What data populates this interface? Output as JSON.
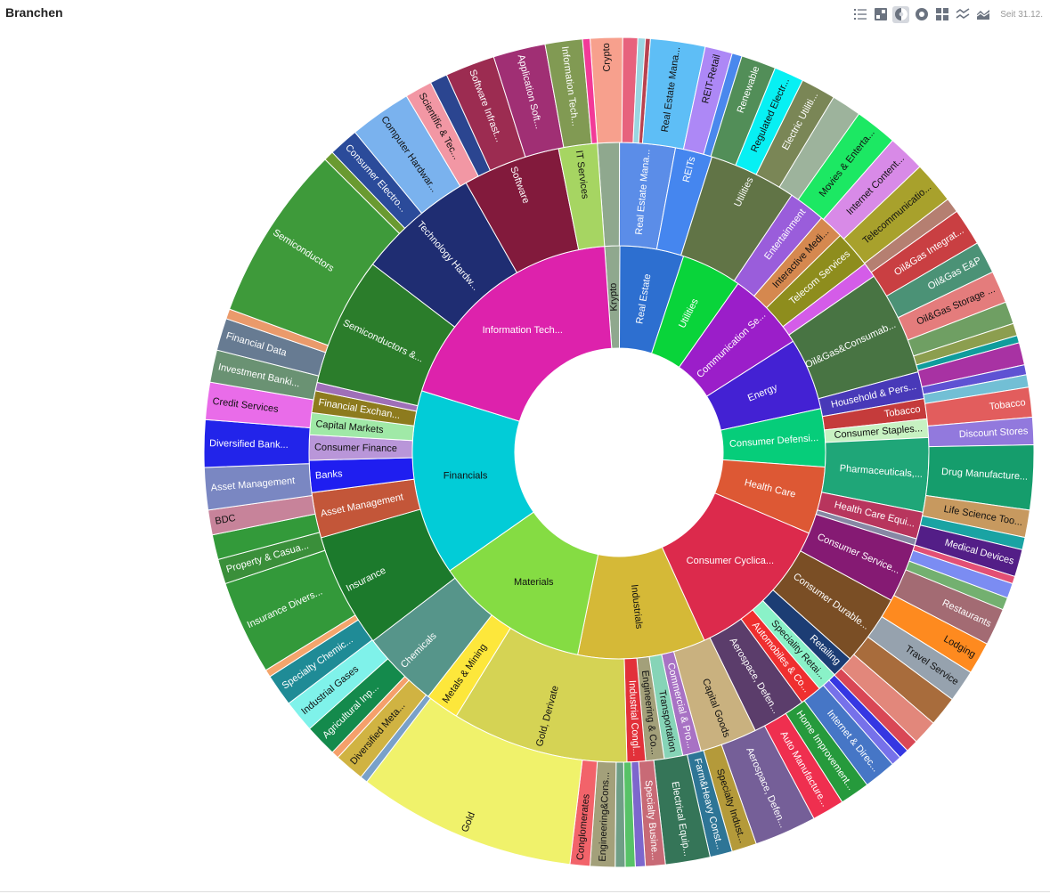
{
  "header": {
    "title": "Branchen",
    "since": "Seit 31.12.",
    "toolbar": [
      {
        "icon": "list-icon",
        "active": false
      },
      {
        "icon": "treemap-icon",
        "active": false
      },
      {
        "icon": "sunburst-icon",
        "active": true
      },
      {
        "icon": "globe-icon",
        "active": false
      },
      {
        "icon": "grid-icon",
        "active": false
      },
      {
        "icon": "line-chart-icon",
        "active": false
      },
      {
        "icon": "area-chart-icon",
        "active": false
      }
    ]
  },
  "chart_data": {
    "type": "sunburst",
    "title": "",
    "start_angle": -4,
    "inner": [
      {
        "label": "Krypto",
        "value": 1.3,
        "color": "#8fa88e"
      },
      {
        "label": "Real Estate",
        "value": 5.5,
        "color": "#2d6fd0"
      },
      {
        "label": "Utilities",
        "value": 5.2,
        "color": "#09d43a"
      },
      {
        "label": "Communication Se...",
        "value": 6.8,
        "color": "#9b1ec9"
      },
      {
        "label": "Energy",
        "value": 6.2,
        "color": "#4321d3"
      },
      {
        "label": "Consumer Defensi...",
        "value": 5.0,
        "color": "#06cd7a"
      },
      {
        "label": "Health Care",
        "value": 5.8,
        "color": "#dd5834"
      },
      {
        "label": "Consumer Cyclica...",
        "value": 13.0,
        "color": "#dc2a4c"
      },
      {
        "label": "Industrials",
        "value": 11.0,
        "color": "#d5b937"
      },
      {
        "label": "Materials",
        "value": 13.3,
        "color": "#85dc43"
      },
      {
        "label": "Financials",
        "value": 16.0,
        "color": "#02ccd7"
      },
      {
        "label": "Information Tech...",
        "value": 21.0,
        "color": "#dd22ac"
      }
    ],
    "middle": [
      {
        "label": "",
        "value": 1.3,
        "color": "#8fa88e"
      },
      {
        "label": "Real Estate Mana...",
        "value": 3.3,
        "color": "#5b8de8"
      },
      {
        "label": "REITs",
        "value": 2.2,
        "color": "#4586ef"
      },
      {
        "label": "Utilities",
        "value": 5.2,
        "color": "#617446"
      },
      {
        "label": "Entertainment",
        "value": 2.2,
        "color": "#9a5ddb"
      },
      {
        "label": "Interactive Medi...",
        "value": 1.5,
        "color": "#d5884f"
      },
      {
        "label": "Telecom Services",
        "value": 2.2,
        "color": "#8e8d1d"
      },
      {
        "label": "",
        "value": 0.9,
        "color": "#d45ce8"
      },
      {
        "label": "Oil&Gas&Consumab...",
        "value": 6.2,
        "color": "#487443"
      },
      {
        "label": "Household & Pers...",
        "value": 1.6,
        "color": "#4839b8"
      },
      {
        "label": "Tobacco",
        "value": 1.2,
        "color": "#c53b3b"
      },
      {
        "label": "Consumer Staples...",
        "value": 1.1,
        "color": "#c7f2c2"
      },
      {
        "label": "Pharmaceuticals,...",
        "value": 4.4,
        "color": "#1fa678"
      },
      {
        "label": "Health Care Equi...",
        "value": 1.6,
        "color": "#b8355d"
      },
      {
        "label": "",
        "value": 0.4,
        "color": "#8787a4"
      },
      {
        "label": "Consumer Service...",
        "value": 3.5,
        "color": "#851a73"
      },
      {
        "label": "Consumer Durable...",
        "value": 4.2,
        "color": "#7a4e25"
      },
      {
        "label": "Retailing",
        "value": 1.3,
        "color": "#1c3d74"
      },
      {
        "label": "Speciality Retai...",
        "value": 1.2,
        "color": "#8af2c8"
      },
      {
        "label": "Automobiles & Co...",
        "value": 1.3,
        "color": "#ef2f2f"
      },
      {
        "label": "Aerospace, Defen...",
        "value": 3.2,
        "color": "#5b3d6b"
      },
      {
        "label": "Capital Goods",
        "value": 3.4,
        "color": "#c9b17f"
      },
      {
        "label": "Commercial & Pro...",
        "value": 1.1,
        "color": "#a872c4"
      },
      {
        "label": "Transportation",
        "value": 1.1,
        "color": "#86d4b7"
      },
      {
        "label": "Engineering & Co...",
        "value": 1.1,
        "color": "#a3a07a"
      },
      {
        "label": "Industrial Congl...",
        "value": 1.1,
        "color": "#e2313a"
      },
      {
        "label": "Gold, Derivate",
        "value": 10.5,
        "color": "#d5d354"
      },
      {
        "label": "Metals & Mining",
        "value": 2.0,
        "color": "#fde73b"
      },
      {
        "label": "Chemicals",
        "value": 4.6,
        "color": "#56958a"
      },
      {
        "label": "Insurance",
        "value": 6.8,
        "color": "#1c7a2c"
      },
      {
        "label": "Asset Management",
        "value": 2.7,
        "color": "#c35639"
      },
      {
        "label": "Banks",
        "value": 1.9,
        "color": "#1f1ef0"
      },
      {
        "label": "Consumer Finance",
        "value": 1.5,
        "color": "#b996d9"
      },
      {
        "label": "Capital Markets",
        "value": 1.3,
        "color": "#a0e9a7"
      },
      {
        "label": "Financial Exchan...",
        "value": 1.3,
        "color": "#8d7b1e"
      },
      {
        "label": "",
        "value": 0.5,
        "color": "#9f6fb8"
      },
      {
        "label": "Semiconductors &...",
        "value": 7.7,
        "color": "#2b7d2b"
      },
      {
        "label": "Technology Hardw...",
        "value": 7.3,
        "color": "#1f2d72"
      },
      {
        "label": "Software",
        "value": 5.8,
        "color": "#821a3c"
      },
      {
        "label": "IT Services",
        "value": 2.3,
        "color": "#a6d562"
      }
    ],
    "outer": [
      {
        "label": "Crypto",
        "value": 1.3,
        "color": "#f7a08d"
      },
      {
        "label": "",
        "value": 0.6,
        "color": "#e7627d"
      },
      {
        "label": "",
        "value": 0.3,
        "color": "#9ad6e1"
      },
      {
        "label": "",
        "value": 0.2,
        "color": "#b9424f"
      },
      {
        "label": "Real Estate Mana...",
        "value": 2.2,
        "color": "#5ebef6"
      },
      {
        "label": "REIT-Retail",
        "value": 1.1,
        "color": "#ad88f6"
      },
      {
        "label": "",
        "value": 0.4,
        "color": "#4a88ed"
      },
      {
        "label": "Renewable",
        "value": 1.4,
        "color": "#528e58"
      },
      {
        "label": "Regulated Electr...",
        "value": 1.2,
        "color": "#07f0f3"
      },
      {
        "label": "Electric Utiliti...",
        "value": 1.4,
        "color": "#7a8656"
      },
      {
        "label": "",
        "value": 1.2,
        "color": "#9db39c"
      },
      {
        "label": "Movies & Enterta...",
        "value": 1.7,
        "color": "#1ce863"
      },
      {
        "label": "Internet Content...",
        "value": 1.5,
        "color": "#d88ae7"
      },
      {
        "label": "Telecommunicatio...",
        "value": 1.7,
        "color": "#a8a12c"
      },
      {
        "label": "",
        "value": 0.6,
        "color": "#b57f71"
      },
      {
        "label": "Oil&Gas Integrat...",
        "value": 1.5,
        "color": "#c93f42"
      },
      {
        "label": "Oil&Gas E&P",
        "value": 1.3,
        "color": "#4b9276"
      },
      {
        "label": "Oil&Gas Storage ...",
        "value": 1.3,
        "color": "#e47c7c"
      },
      {
        "label": "",
        "value": 0.9,
        "color": "#6f9f63"
      },
      {
        "label": "",
        "value": 0.5,
        "color": "#8c9e4f"
      },
      {
        "label": "",
        "value": 0.3,
        "color": "#109c9c"
      },
      {
        "label": "",
        "value": 0.9,
        "color": "#a832a3"
      },
      {
        "label": "",
        "value": 0.4,
        "color": "#5e52d3"
      },
      {
        "label": "",
        "value": 0.5,
        "color": "#72bfd5"
      },
      {
        "label": "Tobacco",
        "value": 1.2,
        "color": "#e25d5d"
      },
      {
        "label": "Discount Stores",
        "value": 1.1,
        "color": "#9279dd"
      },
      {
        "label": "Drug Manufacture...",
        "value": 2.6,
        "color": "#159d6c"
      },
      {
        "label": "Life Science Too...",
        "value": 1.1,
        "color": "#c7995f"
      },
      {
        "label": "",
        "value": 0.5,
        "color": "#1aa3a3"
      },
      {
        "label": "Medical Devices",
        "value": 1.1,
        "color": "#531e87"
      },
      {
        "label": "",
        "value": 0.3,
        "color": "#e34f74"
      },
      {
        "label": "",
        "value": 0.6,
        "color": "#7b8cf2"
      },
      {
        "label": "",
        "value": 0.5,
        "color": "#73b070"
      },
      {
        "label": "Restaurants",
        "value": 1.5,
        "color": "#a36b73"
      },
      {
        "label": "Lodging",
        "value": 1.3,
        "color": "#fe8a1f"
      },
      {
        "label": "Travel Service",
        "value": 1.3,
        "color": "#96a2ae"
      },
      {
        "label": "",
        "value": 1.2,
        "color": "#a86c3c"
      },
      {
        "label": "",
        "value": 1.0,
        "color": "#e2877b"
      },
      {
        "label": "",
        "value": 0.5,
        "color": "#d94755"
      },
      {
        "label": "",
        "value": 0.4,
        "color": "#3537e2"
      },
      {
        "label": "",
        "value": 0.4,
        "color": "#7671ea"
      },
      {
        "label": "Internet & Direc...",
        "value": 1.3,
        "color": "#4676c6"
      },
      {
        "label": "Home Improvement...",
        "value": 1.2,
        "color": "#269a3c"
      },
      {
        "label": "Auto Manufacture...",
        "value": 1.3,
        "color": "#ef2f4f"
      },
      {
        "label": "Aerospace, Defen...",
        "value": 2.5,
        "color": "#755f98"
      },
      {
        "label": "Specialty Indust...",
        "value": 1.0,
        "color": "#b49a3a"
      },
      {
        "label": "Farm&Heavy Const...",
        "value": 0.9,
        "color": "#2e7596"
      },
      {
        "label": "Electrical Equip...",
        "value": 1.8,
        "color": "#357558"
      },
      {
        "label": "Specialty Busine...",
        "value": 0.8,
        "color": "#c86a76"
      },
      {
        "label": "",
        "value": 0.4,
        "color": "#7d67cd"
      },
      {
        "label": "",
        "value": 0.4,
        "color": "#57c267"
      },
      {
        "label": "",
        "value": 0.4,
        "color": "#6f9e86"
      },
      {
        "label": "Engineering&Cons...",
        "value": 1.0,
        "color": "#a3a07a"
      },
      {
        "label": "Conglomerates",
        "value": 0.8,
        "color": "#f2636a"
      },
      {
        "label": "Gold",
        "value": 8.8,
        "color": "#f0f26b"
      },
      {
        "label": "",
        "value": 0.3,
        "color": "#79a1c9"
      },
      {
        "label": "Diversified Meta...",
        "value": 1.2,
        "color": "#d0b342"
      },
      {
        "label": "",
        "value": 0.3,
        "color": "#f5a06b"
      },
      {
        "label": "Agricultural Inp...",
        "value": 1.3,
        "color": "#148a4c"
      },
      {
        "label": "Industrial Gases",
        "value": 1.3,
        "color": "#7ff2ea"
      },
      {
        "label": "Specialty Chemic...",
        "value": 1.3,
        "color": "#1f8b96"
      },
      {
        "label": "",
        "value": 0.3,
        "color": "#f4a56c"
      },
      {
        "label": "Insurance Divers...",
        "value": 3.8,
        "color": "#33993a"
      },
      {
        "label": "Property & Casua...",
        "value": 1.0,
        "color": "#3a8f3a"
      },
      {
        "label": "",
        "value": 1.0,
        "color": "#339a3a"
      },
      {
        "label": "BDC",
        "value": 1.0,
        "color": "#c7839a"
      },
      {
        "label": "Asset Management",
        "value": 1.7,
        "color": "#7a87c2"
      },
      {
        "label": "Diversified Bank...",
        "value": 1.9,
        "color": "#2224ea"
      },
      {
        "label": "Credit Services",
        "value": 1.5,
        "color": "#e96ce9"
      },
      {
        "label": "Investment Banki...",
        "value": 1.3,
        "color": "#6a9273"
      },
      {
        "label": "Financial Data",
        "value": 1.3,
        "color": "#677b92"
      },
      {
        "label": "",
        "value": 0.4,
        "color": "#ea9a6b"
      },
      {
        "label": "Semiconductors",
        "value": 7.1,
        "color": "#3e9a3a"
      },
      {
        "label": "",
        "value": 0.4,
        "color": "#6a9a30"
      },
      {
        "label": "Consumer Electro...",
        "value": 1.2,
        "color": "#2b4b9a"
      },
      {
        "label": "Computer Hardwar...",
        "value": 2.5,
        "color": "#7ab2ee"
      },
      {
        "label": "Scientific & Tec...",
        "value": 1.1,
        "color": "#f297a4"
      },
      {
        "label": "",
        "value": 0.7,
        "color": "#2b4590"
      },
      {
        "label": "Software Infrast...",
        "value": 2.0,
        "color": "#9c2c51"
      },
      {
        "label": "Application Soft...",
        "value": 2.1,
        "color": "#a02f74"
      },
      {
        "label": "Information Tech...",
        "value": 1.5,
        "color": "#819a53"
      },
      {
        "label": "",
        "value": 0.3,
        "color": "#f23a98"
      }
    ]
  }
}
